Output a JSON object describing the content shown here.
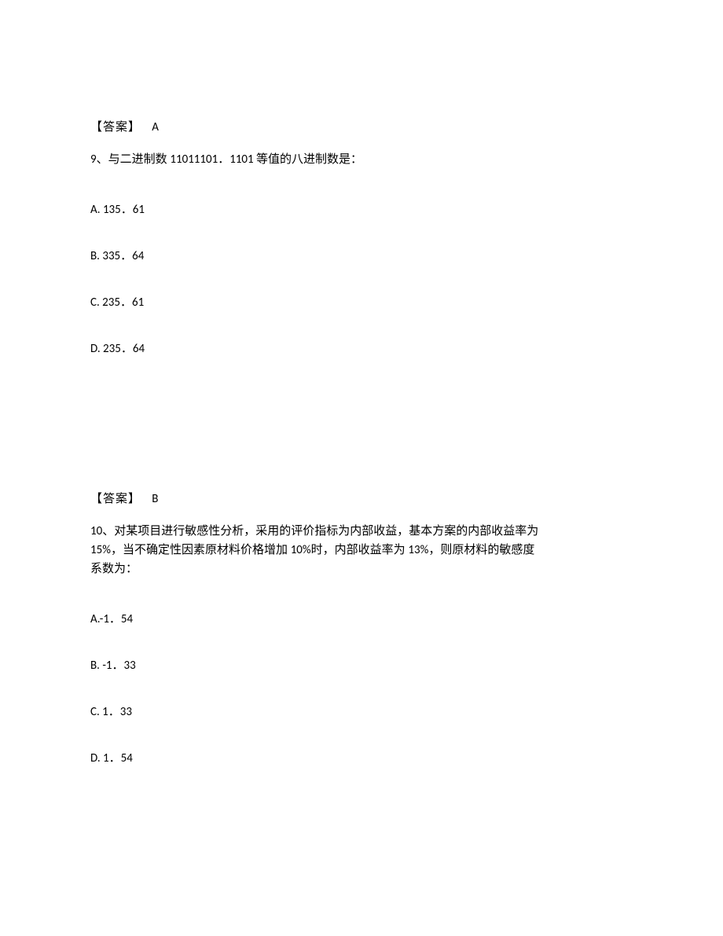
{
  "q9": {
    "prev_answer_label": "【答案】",
    "prev_answer_letter": "A",
    "number": "9",
    "sep": "、",
    "text_part1": "与二进制数 ",
    "binary": "11011101．1101 ",
    "text_part2": "等值的八进制数是：",
    "options": {
      "a": "A.  135．61",
      "b": "B.  335．64",
      "c": "C.  235．61",
      "d": "D.  235．64"
    }
  },
  "q10": {
    "prev_answer_label": "【答案】",
    "prev_answer_letter": "B",
    "number": "10",
    "sep": "、",
    "text_line1_cn1": "对某项目进行敏感性分析，采用的评价指标为内部收益，基本方案的内部收益率为",
    "text_line2_p1": "15%",
    "text_line2_cn1": "，当不确定性因素原材料价格增加 ",
    "text_line2_p2": "10%",
    "text_line2_cn2": "时，内部收益率为 ",
    "text_line2_p3": "13%",
    "text_line2_cn3": "，则原材料的敏感度",
    "text_line3": "系数为：",
    "options": {
      "a": "A.-1．54",
      "b": "B.  -1．33",
      "c": "C.  1．33",
      "d": "D.  1．54"
    }
  }
}
